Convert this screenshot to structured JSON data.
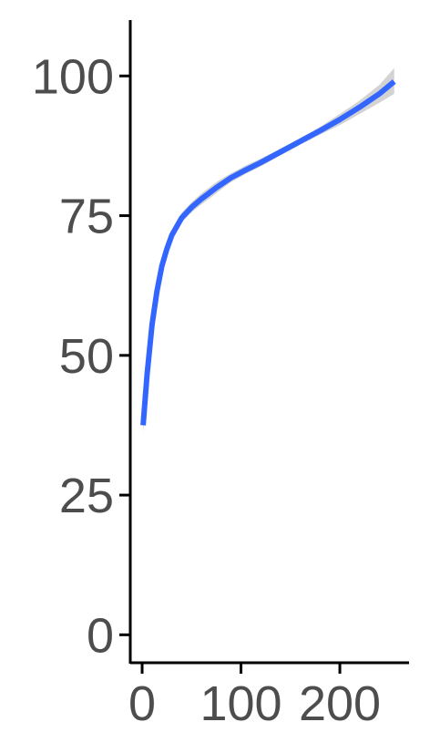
{
  "chart_data": {
    "type": "line",
    "title": "",
    "xlabel": "",
    "ylabel": "",
    "xlim": [
      -12,
      270
    ],
    "ylim": [
      -5,
      110
    ],
    "x_ticks": [
      0,
      100,
      200
    ],
    "y_ticks": [
      0,
      25,
      50,
      75,
      100
    ],
    "x_tick_labels": [
      "0",
      "100",
      "200"
    ],
    "y_tick_labels": [
      "0",
      "25",
      "50",
      "75",
      "100"
    ],
    "grid": false,
    "legend": "none",
    "series": [
      {
        "color": "#3366ff",
        "ribbon_color": "#d3d3d3",
        "points": [
          {
            "x": 1,
            "y": 37.5,
            "lo": 36.0,
            "hi": 39.0
          },
          {
            "x": 5,
            "y": 46.5,
            "lo": 45.5,
            "hi": 47.5
          },
          {
            "x": 10,
            "y": 55.5,
            "lo": 54.8,
            "hi": 56.2
          },
          {
            "x": 15,
            "y": 61.5,
            "lo": 61.0,
            "hi": 62.0
          },
          {
            "x": 20,
            "y": 66.0,
            "lo": 65.5,
            "hi": 66.5
          },
          {
            "x": 25,
            "y": 69.0,
            "lo": 68.5,
            "hi": 69.5
          },
          {
            "x": 30,
            "y": 71.5,
            "lo": 71.0,
            "hi": 72.2
          },
          {
            "x": 40,
            "y": 74.6,
            "lo": 73.8,
            "hi": 75.5
          },
          {
            "x": 50,
            "y": 76.5,
            "lo": 75.6,
            "hi": 77.4
          },
          {
            "x": 60,
            "y": 78.0,
            "lo": 77.0,
            "hi": 79.0
          },
          {
            "x": 75,
            "y": 80.0,
            "lo": 79.0,
            "hi": 81.0
          },
          {
            "x": 90,
            "y": 81.8,
            "lo": 81.0,
            "hi": 82.6
          },
          {
            "x": 105,
            "y": 83.2,
            "lo": 82.5,
            "hi": 84.0
          },
          {
            "x": 120,
            "y": 84.5,
            "lo": 83.8,
            "hi": 85.2
          },
          {
            "x": 140,
            "y": 86.4,
            "lo": 85.8,
            "hi": 87.0
          },
          {
            "x": 160,
            "y": 88.3,
            "lo": 87.7,
            "hi": 88.9
          },
          {
            "x": 180,
            "y": 90.2,
            "lo": 89.5,
            "hi": 90.9
          },
          {
            "x": 200,
            "y": 92.2,
            "lo": 91.2,
            "hi": 93.2
          },
          {
            "x": 220,
            "y": 94.4,
            "lo": 93.2,
            "hi": 95.6
          },
          {
            "x": 240,
            "y": 96.8,
            "lo": 95.2,
            "hi": 98.4
          },
          {
            "x": 255,
            "y": 99.0,
            "lo": 96.8,
            "hi": 101.4
          }
        ]
      }
    ]
  }
}
